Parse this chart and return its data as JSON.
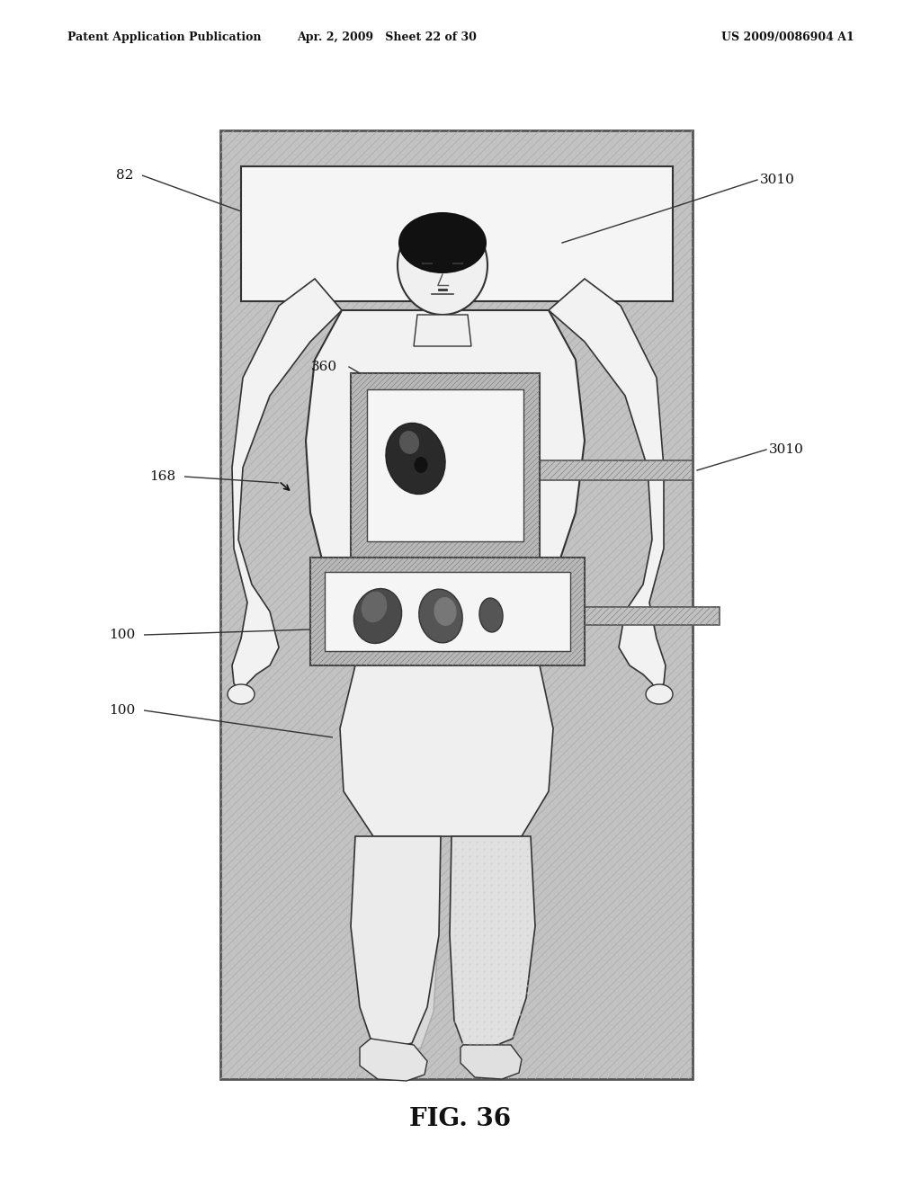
{
  "title": "FIG. 36",
  "header_left": "Patent Application Publication",
  "header_mid": "Apr. 2, 2009   Sheet 22 of 30",
  "header_right": "US 2009/0086904 A1",
  "bg_color": "#ffffff",
  "fig_width": 10.24,
  "fig_height": 13.2,
  "dpi": 100
}
